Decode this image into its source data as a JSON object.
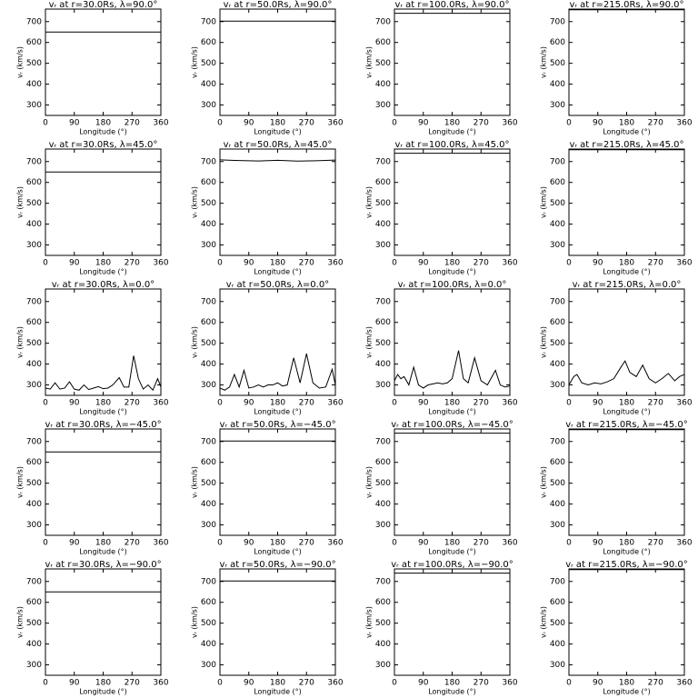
{
  "chart_data": [
    {
      "type": "line",
      "title": "vᵣ at r=30.0Rs, λ=90.0°",
      "xlabel": "Longitude (°)",
      "ylabel": "vᵣ (km/s)",
      "x": [
        0,
        360
      ],
      "values": [
        650,
        650
      ],
      "xlim": [
        0,
        360
      ],
      "ylim": [
        250,
        760
      ],
      "xticks": [
        0,
        90,
        180,
        270,
        360
      ],
      "yticks": [
        300,
        400,
        500,
        600,
        700
      ]
    },
    {
      "type": "line",
      "title": "vᵣ at r=50.0Rs, λ=90.0°",
      "xlabel": "Longitude (°)",
      "ylabel": "vᵣ (km/s)",
      "x": [
        0,
        360
      ],
      "values": [
        702,
        702
      ],
      "xlim": [
        0,
        360
      ],
      "ylim": [
        250,
        760
      ],
      "xticks": [
        0,
        90,
        180,
        270,
        360
      ],
      "yticks": [
        300,
        400,
        500,
        600,
        700
      ]
    },
    {
      "type": "line",
      "title": "vᵣ at r=100.0Rs, λ=90.0°",
      "xlabel": "Longitude (°)",
      "ylabel": "vᵣ (km/s)",
      "x": [
        0,
        360
      ],
      "values": [
        740,
        740
      ],
      "xlim": [
        0,
        360
      ],
      "ylim": [
        250,
        760
      ],
      "xticks": [
        0,
        90,
        180,
        270,
        360
      ],
      "yticks": [
        300,
        400,
        500,
        600,
        700
      ]
    },
    {
      "type": "line",
      "title": "vᵣ at r=215.0Rs, λ=90.0°",
      "xlabel": "Longitude (°)",
      "ylabel": "vᵣ (km/s)",
      "x": [
        0,
        360
      ],
      "values": [
        757,
        757
      ],
      "xlim": [
        0,
        360
      ],
      "ylim": [
        250,
        760
      ],
      "xticks": [
        0,
        90,
        180,
        270,
        360
      ],
      "yticks": [
        300,
        400,
        500,
        600,
        700
      ]
    },
    {
      "type": "line",
      "title": "vᵣ at r=30.0Rs, λ=45.0°",
      "xlabel": "Longitude (°)",
      "ylabel": "vᵣ (km/s)",
      "x": [
        0,
        360
      ],
      "values": [
        650,
        650
      ],
      "xlim": [
        0,
        360
      ],
      "ylim": [
        250,
        760
      ],
      "xticks": [
        0,
        90,
        180,
        270,
        360
      ],
      "yticks": [
        300,
        400,
        500,
        600,
        700
      ]
    },
    {
      "type": "line",
      "title": "vᵣ at r=50.0Rs, λ=45.0°",
      "xlabel": "Longitude (°)",
      "ylabel": "vᵣ (km/s)",
      "x": [
        0,
        60,
        120,
        180,
        240,
        300,
        360
      ],
      "values": [
        708,
        705,
        703,
        706,
        702,
        704,
        707
      ],
      "xlim": [
        0,
        360
      ],
      "ylim": [
        250,
        760
      ],
      "xticks": [
        0,
        90,
        180,
        270,
        360
      ],
      "yticks": [
        300,
        400,
        500,
        600,
        700
      ]
    },
    {
      "type": "line",
      "title": "vᵣ at r=100.0Rs, λ=45.0°",
      "xlabel": "Longitude (°)",
      "ylabel": "vᵣ (km/s)",
      "x": [
        0,
        360
      ],
      "values": [
        740,
        740
      ],
      "xlim": [
        0,
        360
      ],
      "ylim": [
        250,
        760
      ],
      "xticks": [
        0,
        90,
        180,
        270,
        360
      ],
      "yticks": [
        300,
        400,
        500,
        600,
        700
      ]
    },
    {
      "type": "line",
      "title": "vᵣ at r=215.0Rs, λ=45.0°",
      "xlabel": "Longitude (°)",
      "ylabel": "vᵣ (km/s)",
      "x": [
        0,
        360
      ],
      "values": [
        757,
        757
      ],
      "xlim": [
        0,
        360
      ],
      "ylim": [
        250,
        760
      ],
      "xticks": [
        0,
        90,
        180,
        270,
        360
      ],
      "yticks": [
        300,
        400,
        500,
        600,
        700
      ]
    },
    {
      "type": "line",
      "title": "vᵣ at r=30.0Rs, λ=0.0°",
      "xlabel": "Longitude (°)",
      "ylabel": "vᵣ (km/s)",
      "x": [
        0,
        15,
        30,
        45,
        60,
        75,
        90,
        105,
        120,
        135,
        150,
        165,
        180,
        195,
        210,
        230,
        245,
        260,
        275,
        290,
        305,
        320,
        335,
        350,
        360
      ],
      "values": [
        285,
        280,
        310,
        280,
        285,
        315,
        280,
        275,
        300,
        278,
        285,
        292,
        282,
        285,
        300,
        335,
        290,
        290,
        440,
        330,
        280,
        300,
        275,
        330,
        290
      ],
      "xlim": [
        0,
        360
      ],
      "ylim": [
        250,
        760
      ],
      "xticks": [
        0,
        90,
        180,
        270,
        360
      ],
      "yticks": [
        300,
        400,
        500,
        600,
        700
      ]
    },
    {
      "type": "line",
      "title": "vᵣ at r=50.0Rs, λ=0.0°",
      "xlabel": "Longitude (°)",
      "ylabel": "vᵣ (km/s)",
      "x": [
        0,
        15,
        30,
        45,
        60,
        75,
        90,
        105,
        120,
        135,
        150,
        165,
        180,
        195,
        210,
        230,
        250,
        270,
        290,
        310,
        330,
        350,
        360
      ],
      "values": [
        285,
        275,
        290,
        350,
        290,
        370,
        285,
        290,
        300,
        290,
        300,
        300,
        310,
        295,
        300,
        430,
        310,
        450,
        310,
        285,
        290,
        375,
        300
      ],
      "xlim": [
        0,
        360
      ],
      "ylim": [
        250,
        760
      ],
      "xticks": [
        0,
        90,
        180,
        270,
        360
      ],
      "yticks": [
        300,
        400,
        500,
        600,
        700
      ]
    },
    {
      "type": "line",
      "title": "vᵣ at r=100.0Rs, λ=0.0°",
      "xlabel": "Longitude (°)",
      "ylabel": "vᵣ (km/s)",
      "x": [
        0,
        10,
        20,
        30,
        45,
        60,
        75,
        90,
        105,
        120,
        135,
        150,
        165,
        180,
        200,
        215,
        230,
        250,
        270,
        290,
        315,
        330,
        345,
        360
      ],
      "values": [
        320,
        350,
        330,
        340,
        300,
        385,
        300,
        285,
        300,
        305,
        310,
        305,
        310,
        330,
        465,
        330,
        310,
        430,
        320,
        300,
        370,
        300,
        290,
        295
      ],
      "xlim": [
        0,
        360
      ],
      "ylim": [
        250,
        760
      ],
      "xticks": [
        0,
        90,
        180,
        270,
        360
      ],
      "yticks": [
        300,
        400,
        500,
        600,
        700
      ]
    },
    {
      "type": "line",
      "title": "vᵣ at r=215.0Rs, λ=0.0°",
      "xlabel": "Longitude (°)",
      "ylabel": "vᵣ (km/s)",
      "x": [
        0,
        15,
        25,
        40,
        60,
        80,
        100,
        120,
        140,
        160,
        175,
        190,
        210,
        230,
        250,
        270,
        290,
        310,
        330,
        345,
        360
      ],
      "values": [
        300,
        340,
        350,
        310,
        300,
        310,
        305,
        315,
        330,
        380,
        415,
        360,
        340,
        395,
        330,
        310,
        330,
        355,
        320,
        340,
        350
      ],
      "xlim": [
        0,
        360
      ],
      "ylim": [
        250,
        760
      ],
      "xticks": [
        0,
        90,
        180,
        270,
        360
      ],
      "yticks": [
        300,
        400,
        500,
        600,
        700
      ]
    },
    {
      "type": "line",
      "title": "vᵣ at r=30.0Rs, λ=−45.0°",
      "xlabel": "Longitude (°)",
      "ylabel": "vᵣ (km/s)",
      "x": [
        0,
        360
      ],
      "values": [
        650,
        650
      ],
      "xlim": [
        0,
        360
      ],
      "ylim": [
        250,
        760
      ],
      "xticks": [
        0,
        90,
        180,
        270,
        360
      ],
      "yticks": [
        300,
        400,
        500,
        600,
        700
      ]
    },
    {
      "type": "line",
      "title": "vᵣ at r=50.0Rs, λ=−45.0°",
      "xlabel": "Longitude (°)",
      "ylabel": "vᵣ (km/s)",
      "x": [
        0,
        360
      ],
      "values": [
        702,
        702
      ],
      "xlim": [
        0,
        360
      ],
      "ylim": [
        250,
        760
      ],
      "xticks": [
        0,
        90,
        180,
        270,
        360
      ],
      "yticks": [
        300,
        400,
        500,
        600,
        700
      ]
    },
    {
      "type": "line",
      "title": "vᵣ at r=100.0Rs, λ=−45.0°",
      "xlabel": "Longitude (°)",
      "ylabel": "vᵣ (km/s)",
      "x": [
        0,
        360
      ],
      "values": [
        740,
        740
      ],
      "xlim": [
        0,
        360
      ],
      "ylim": [
        250,
        760
      ],
      "xticks": [
        0,
        90,
        180,
        270,
        360
      ],
      "yticks": [
        300,
        400,
        500,
        600,
        700
      ]
    },
    {
      "type": "line",
      "title": "vᵣ at r=215.0Rs, λ=−45.0°",
      "xlabel": "Longitude (°)",
      "ylabel": "vᵣ (km/s)",
      "x": [
        0,
        360
      ],
      "values": [
        757,
        757
      ],
      "xlim": [
        0,
        360
      ],
      "ylim": [
        250,
        760
      ],
      "xticks": [
        0,
        90,
        180,
        270,
        360
      ],
      "yticks": [
        300,
        400,
        500,
        600,
        700
      ]
    },
    {
      "type": "line",
      "title": "vᵣ at r=30.0Rs, λ=−90.0°",
      "xlabel": "Longitude (°)",
      "ylabel": "vᵣ (km/s)",
      "x": [
        0,
        360
      ],
      "values": [
        650,
        650
      ],
      "xlim": [
        0,
        360
      ],
      "ylim": [
        250,
        760
      ],
      "xticks": [
        0,
        90,
        180,
        270,
        360
      ],
      "yticks": [
        300,
        400,
        500,
        600,
        700
      ]
    },
    {
      "type": "line",
      "title": "vᵣ at r=50.0Rs, λ=−90.0°",
      "xlabel": "Longitude (°)",
      "ylabel": "vᵣ (km/s)",
      "x": [
        0,
        360
      ],
      "values": [
        702,
        702
      ],
      "xlim": [
        0,
        360
      ],
      "ylim": [
        250,
        760
      ],
      "xticks": [
        0,
        90,
        180,
        270,
        360
      ],
      "yticks": [
        300,
        400,
        500,
        600,
        700
      ]
    },
    {
      "type": "line",
      "title": "vᵣ at r=100.0Rs, λ=−90.0°",
      "xlabel": "Longitude (°)",
      "ylabel": "vᵣ (km/s)",
      "x": [
        0,
        360
      ],
      "values": [
        740,
        740
      ],
      "xlim": [
        0,
        360
      ],
      "ylim": [
        250,
        760
      ],
      "xticks": [
        0,
        90,
        180,
        270,
        360
      ],
      "yticks": [
        300,
        400,
        500,
        600,
        700
      ]
    },
    {
      "type": "line",
      "title": "vᵣ at r=215.0Rs, λ=−90.0°",
      "xlabel": "Longitude (°)",
      "ylabel": "vᵣ (km/s)",
      "x": [
        0,
        360
      ],
      "values": [
        757,
        757
      ],
      "xlim": [
        0,
        360
      ],
      "ylim": [
        250,
        760
      ],
      "xticks": [
        0,
        90,
        180,
        270,
        360
      ],
      "yticks": [
        300,
        400,
        500,
        600,
        700
      ]
    }
  ]
}
